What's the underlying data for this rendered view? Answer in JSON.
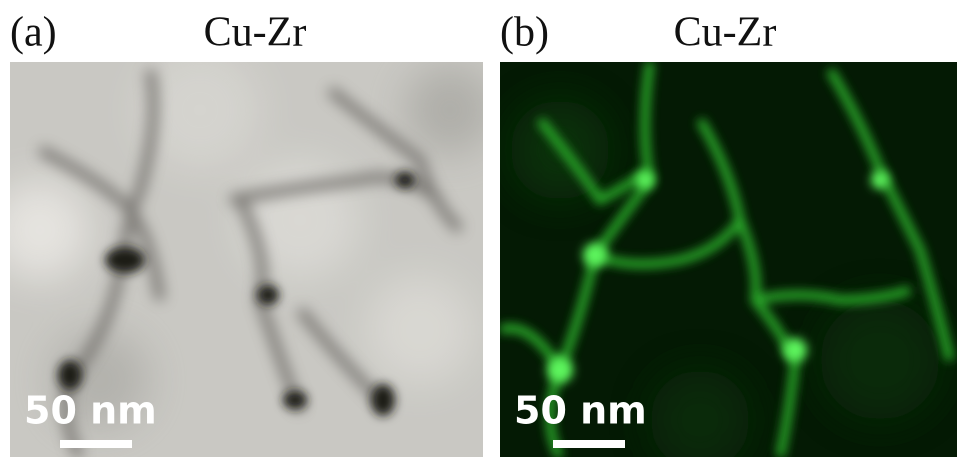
{
  "panels": [
    {
      "label": "(a)",
      "title": "Cu-Zr",
      "scale_bar": "50 nm"
    },
    {
      "label": "(b)",
      "title": "Cu-Zr",
      "scale_bar": "50 nm"
    }
  ]
}
